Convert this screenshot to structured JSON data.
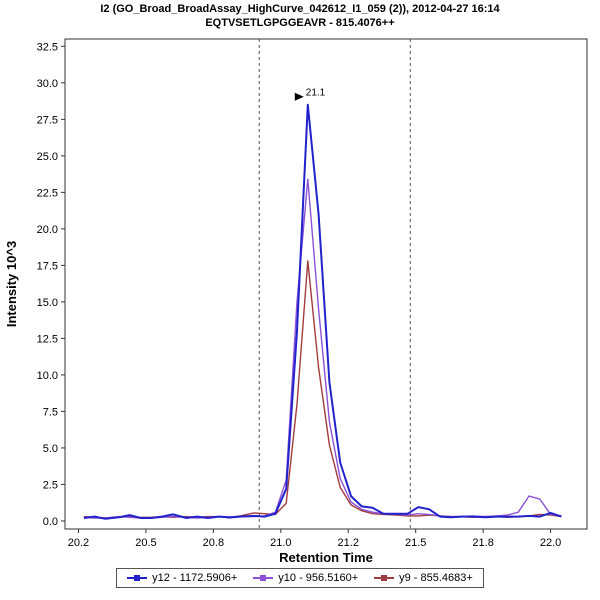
{
  "header": {
    "title_line1": "I2 (GO_Broad_BroadAssay_HighCurve_042612_I1_059 (2)), 2012-04-27 16:14",
    "title_line2": "EQTVSETLGPGGEAVR - 815.4076++"
  },
  "chart_data": {
    "type": "line",
    "title": "I2 (GO_Broad_BroadAssay_HighCurve_042612_I1_059 (2)), 2012-04-27 16:14",
    "subtitle": "EQTVSETLGPGGEAVR - 815.4076++",
    "xlabel": "Retention Time",
    "ylabel": "Intensity 10^3",
    "axis": {
      "x_min": 20.2,
      "x_max": 22.135,
      "y_min": -0.55,
      "y_max": 33.0
    },
    "x_ticks": [
      20.25,
      20.5,
      20.75,
      21.0,
      21.25,
      21.5,
      21.75,
      22.0
    ],
    "x_tick_labels": [
      "20.2",
      "20.5",
      "20.8",
      "21.0",
      "21.2",
      "21.5",
      "21.8",
      "22.0"
    ],
    "y_ticks": [
      0,
      2.5,
      5.0,
      7.5,
      10.0,
      12.5,
      15.0,
      17.5,
      20.0,
      22.5,
      25.0,
      27.5,
      30.0,
      32.5
    ],
    "y_tick_labels": [
      "0.0",
      "2.5",
      "5.0",
      "7.5",
      "10.0",
      "12.5",
      "15.0",
      "17.5",
      "20.0",
      "22.5",
      "25.0",
      "27.5",
      "30.0",
      "32.5"
    ],
    "boundaries": [
      20.92,
      21.48
    ],
    "boundary_color": "#555555",
    "peak_annotation": {
      "label": "21.1",
      "x": 21.1,
      "y": 28.5
    },
    "x": [
      20.27,
      20.31,
      20.35,
      20.4,
      20.44,
      20.48,
      20.52,
      20.56,
      20.6,
      20.65,
      20.69,
      20.73,
      20.77,
      20.81,
      20.85,
      20.9,
      20.94,
      20.98,
      21.02,
      21.06,
      21.1,
      21.14,
      21.18,
      21.22,
      21.26,
      21.3,
      21.34,
      21.38,
      21.43,
      21.47,
      21.51,
      21.55,
      21.59,
      21.63,
      21.67,
      21.71,
      21.76,
      21.8,
      21.84,
      21.88,
      21.92,
      21.96,
      22.0,
      22.04
    ],
    "series": [
      {
        "name": "y12 - 1172.5906+",
        "color": "#2222cc",
        "width": 2,
        "values": [
          0.2,
          0.3,
          0.15,
          0.25,
          0.4,
          0.2,
          0.2,
          0.3,
          0.45,
          0.2,
          0.3,
          0.2,
          0.3,
          0.25,
          0.3,
          0.35,
          0.3,
          0.5,
          2.2,
          13.0,
          28.5,
          21.0,
          9.5,
          4.0,
          1.7,
          1.0,
          0.9,
          0.5,
          0.5,
          0.5,
          0.95,
          0.8,
          0.3,
          0.25,
          0.3,
          0.3,
          0.25,
          0.3,
          0.3,
          0.3,
          0.35,
          0.3,
          0.55,
          0.3
        ]
      },
      {
        "name": "y10 - 956.5160+",
        "color": "#8c51d6",
        "width": 1.4,
        "values": [
          0.25,
          0.2,
          0.2,
          0.3,
          0.25,
          0.2,
          0.2,
          0.25,
          0.3,
          0.25,
          0.2,
          0.25,
          0.3,
          0.2,
          0.3,
          0.3,
          0.35,
          0.6,
          2.8,
          15.0,
          23.4,
          14.5,
          6.8,
          2.9,
          1.3,
          0.8,
          0.6,
          0.5,
          0.45,
          0.4,
          0.5,
          0.45,
          0.35,
          0.3,
          0.3,
          0.35,
          0.3,
          0.35,
          0.4,
          0.6,
          1.7,
          1.5,
          0.45,
          0.35
        ]
      },
      {
        "name": "y9 - 855.4683+",
        "color": "#a23b3b",
        "width": 1.4,
        "values": [
          0.3,
          0.25,
          0.2,
          0.25,
          0.3,
          0.25,
          0.25,
          0.3,
          0.25,
          0.3,
          0.25,
          0.3,
          0.3,
          0.25,
          0.35,
          0.55,
          0.5,
          0.45,
          1.2,
          8.0,
          17.8,
          10.5,
          5.2,
          2.3,
          1.1,
          0.7,
          0.5,
          0.45,
          0.4,
          0.35,
          0.35,
          0.4,
          0.35,
          0.3,
          0.3,
          0.25,
          0.3,
          0.3,
          0.25,
          0.3,
          0.35,
          0.45,
          0.4,
          0.3
        ]
      }
    ]
  }
}
